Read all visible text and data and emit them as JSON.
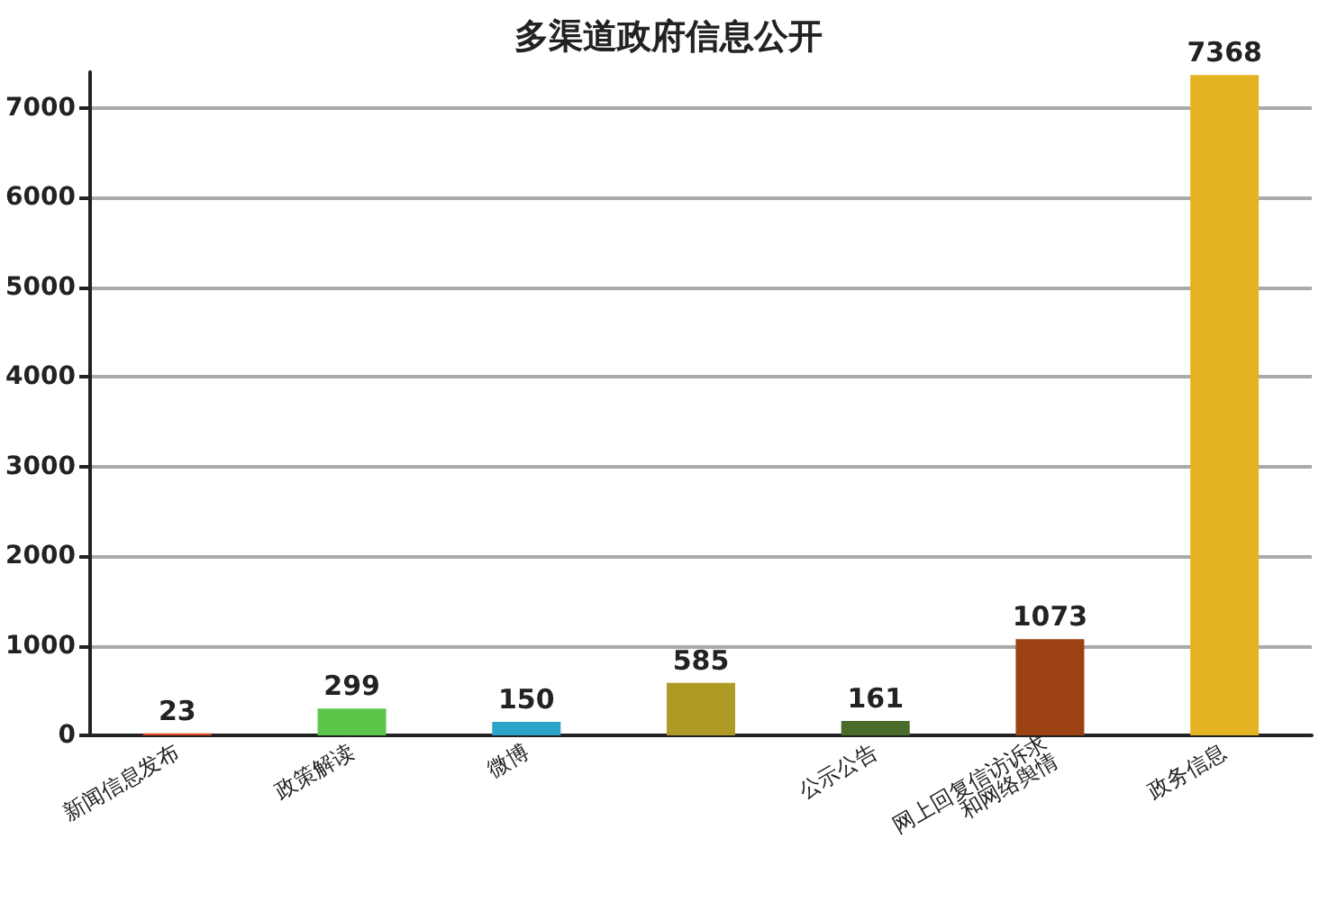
{
  "chart_data": {
    "type": "bar",
    "title": "多渠道政府信息公开",
    "categories": [
      "新闻信息发布",
      "政策解读",
      "微博",
      null,
      "公示公告",
      "网上回复信访诉求和网络舆情",
      "政务信息"
    ],
    "values": [
      23,
      299,
      150,
      585,
      161,
      1073,
      7368
    ],
    "colors": [
      "#e0452a",
      "#5cc64a",
      "#2aa5c9",
      "#b09a26",
      "#4a6a2a",
      "#9c4212",
      "#e5b322"
    ],
    "ylim": [
      0,
      7400
    ],
    "yticks": [
      0,
      1000,
      2000,
      3000,
      4000,
      5000,
      6000,
      7000
    ],
    "grid": "y",
    "data_labels": true
  }
}
